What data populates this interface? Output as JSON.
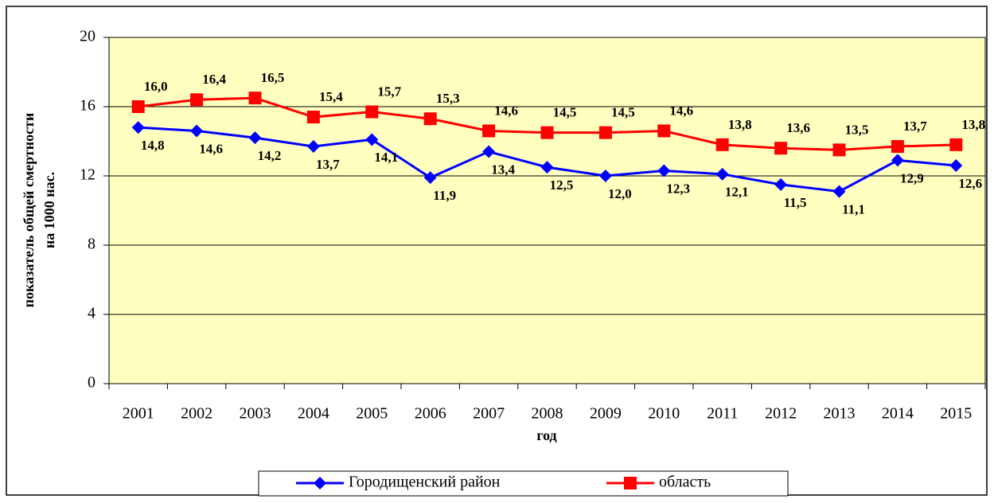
{
  "chart_data": {
    "type": "line",
    "y_label": [
      "показатель общей смертности",
      "на 1000 нас."
    ],
    "x_label": "год",
    "categories": [
      "2001",
      "2002",
      "2003",
      "2004",
      "2005",
      "2006",
      "2007",
      "2008",
      "2009",
      "2010",
      "2011",
      "2012",
      "2013",
      "2014",
      "2015"
    ],
    "series": [
      {
        "name": "Городищенский район",
        "color": "#0000ff",
        "marker": "diamond",
        "values": [
          14.8,
          14.6,
          14.2,
          13.7,
          14.1,
          11.9,
          13.4,
          12.5,
          12.0,
          12.3,
          12.1,
          11.5,
          11.1,
          12.9,
          12.6
        ],
        "value_labels": [
          "14,8",
          "14,6",
          "14,2",
          "13,7",
          "14,1",
          "11,9",
          "13,4",
          "12,5",
          "12,0",
          "12,3",
          "12,1",
          "11,5",
          "11,1",
          "12,9",
          "12,6"
        ]
      },
      {
        "name": "область",
        "color": "#ff0000",
        "marker": "square",
        "values": [
          16.0,
          16.4,
          16.5,
          15.4,
          15.7,
          15.3,
          14.6,
          14.5,
          14.5,
          14.6,
          13.8,
          13.6,
          13.5,
          13.7,
          13.8
        ],
        "value_labels": [
          "16,0",
          "16,4",
          "16,5",
          "15,4",
          "15,7",
          "15,3",
          "14,6",
          "14,5",
          "14,5",
          "14,6",
          "13,8",
          "13,6",
          "13,5",
          "13,7",
          "13,8"
        ]
      }
    ],
    "ylim": [
      0,
      20
    ],
    "yticks": [
      0,
      4,
      8,
      12,
      16,
      20
    ],
    "grid": true,
    "plot_background": "#ffffc0",
    "legend": "bottom"
  }
}
